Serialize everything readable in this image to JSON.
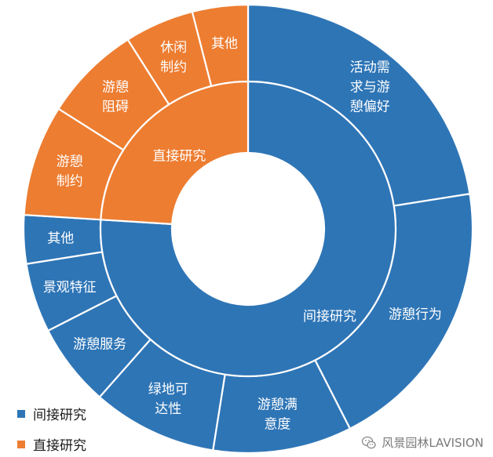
{
  "chart_data": {
    "type": "sunburst",
    "colors": {
      "间接研究": "#2e75b6",
      "直接研究": "#ed7d31"
    },
    "inner": [
      {
        "label": "间接研究",
        "value": 76
      },
      {
        "label": "直接研究",
        "value": 24
      }
    ],
    "outer": [
      {
        "parent": "间接研究",
        "lines": [
          "活动需",
          "求与游",
          "憩偏好"
        ],
        "value": 22.5
      },
      {
        "parent": "间接研究",
        "lines": [
          "游憩行为"
        ],
        "value": 20
      },
      {
        "parent": "间接研究",
        "lines": [
          "游憩满",
          "意度"
        ],
        "value": 10
      },
      {
        "parent": "间接研究",
        "lines": [
          "绿地可",
          "达性"
        ],
        "value": 9
      },
      {
        "parent": "间接研究",
        "lines": [
          "游憩服务"
        ],
        "value": 6
      },
      {
        "parent": "间接研究",
        "lines": [
          "景观特征"
        ],
        "value": 5
      },
      {
        "parent": "间接研究",
        "lines": [
          "其他"
        ],
        "value": 3.5
      },
      {
        "parent": "直接研究",
        "lines": [
          "游憩",
          "制约"
        ],
        "value": 8
      },
      {
        "parent": "直接研究",
        "lines": [
          "游憩",
          "阻碍"
        ],
        "value": 7
      },
      {
        "parent": "直接研究",
        "lines": [
          "休闲",
          "制约"
        ],
        "value": 5
      },
      {
        "parent": "直接研究",
        "lines": [
          "其他"
        ],
        "value": 4
      }
    ],
    "legend": [
      {
        "label": "间接研究",
        "color": "#2e75b6"
      },
      {
        "label": "直接研究",
        "color": "#ed7d31"
      }
    ]
  },
  "watermark": {
    "text": "风景园林LAVISION",
    "icon": "wechat-icon"
  }
}
